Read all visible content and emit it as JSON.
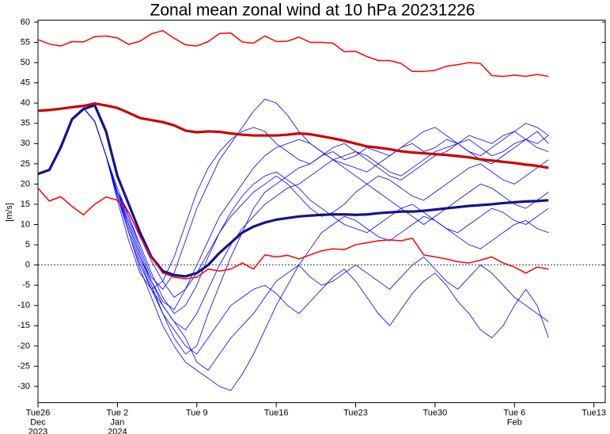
{
  "chart_data": {
    "type": "line",
    "title": "Zonal mean zonal wind at 10 hPa 20231226",
    "y_label": "[m/s]",
    "x": [
      0,
      1,
      2,
      3,
      4,
      5,
      6,
      7,
      8,
      9,
      10,
      11,
      12,
      13,
      14,
      15,
      16,
      17,
      18,
      19,
      20,
      21,
      22,
      23,
      24,
      25,
      26,
      27,
      28,
      29,
      30,
      31,
      32,
      33,
      34,
      35,
      36,
      37,
      38,
      39,
      40,
      41,
      42,
      43,
      44,
      45
    ],
    "xlim": [
      0,
      50
    ],
    "ylim": [
      -34,
      60.5
    ],
    "xticks": [
      {
        "value": 0,
        "label": "Tue26"
      },
      {
        "value": 7,
        "label": "Tue 2"
      },
      {
        "value": 14,
        "label": "Tue 9"
      },
      {
        "value": 21,
        "label": "Tue16"
      },
      {
        "value": 28,
        "label": "Tue23"
      },
      {
        "value": 35,
        "label": "Tue30"
      },
      {
        "value": 42,
        "label": "Tue 6"
      },
      {
        "value": 49,
        "label": "Tue13"
      }
    ],
    "month_labels": [
      {
        "value": 0,
        "label": "Dec"
      },
      {
        "value": 7,
        "label": "Jan"
      },
      {
        "value": 42,
        "label": "Feb"
      }
    ],
    "year_labels": [
      {
        "value": 0,
        "label": "2023"
      },
      {
        "value": 7,
        "label": "2024"
      }
    ],
    "yticks": [
      -30,
      -25,
      -20,
      -15,
      -10,
      -5,
      0,
      5,
      10,
      15,
      20,
      25,
      30,
      35,
      40,
      45,
      50,
      55,
      60
    ],
    "zero_line": true,
    "series": [
      {
        "color": "#0000ff",
        "linewidth": 0.8,
        "values": [
          22.5,
          23.6,
          29.5,
          36.2,
          38.8,
          35.5,
          27.0,
          18,
          10,
          2,
          -5,
          -12,
          -18,
          -22,
          -20,
          -12,
          -5,
          2,
          8,
          14,
          18,
          20,
          22,
          24,
          25,
          27,
          28,
          26,
          27,
          29,
          28,
          27,
          29,
          30,
          28,
          29,
          31,
          30,
          32,
          31,
          30,
          32,
          33,
          31,
          30,
          32
        ]
      },
      {
        "color": "#0000ff",
        "linewidth": 0.8,
        "values": [
          22.5,
          23.6,
          29.5,
          36.2,
          38.8,
          35.5,
          27.0,
          16,
          6,
          -2,
          -6,
          -4,
          2,
          10,
          18,
          24,
          28,
          31,
          33,
          34,
          33,
          30,
          28,
          26,
          25,
          27,
          29,
          30,
          28,
          26,
          24,
          22,
          21,
          23,
          25,
          27,
          28,
          30,
          31,
          29,
          27,
          28,
          30,
          31,
          29,
          28
        ]
      },
      {
        "color": "#0000ff",
        "linewidth": 0.8,
        "values": [
          22.5,
          23.6,
          29.5,
          36.2,
          38.8,
          35.5,
          27.0,
          17,
          8,
          0,
          -6,
          -10,
          -14,
          -18,
          -24,
          -26,
          -22,
          -18,
          -15,
          -12,
          -8,
          -4,
          -2,
          0,
          -3,
          -5,
          -4,
          -2,
          0,
          -2,
          -4,
          -6,
          -3,
          0,
          2,
          -1,
          -4,
          -6,
          -3,
          0,
          -2,
          -5,
          -8,
          -10,
          -12,
          -14
        ]
      },
      {
        "color": "#0000ff",
        "linewidth": 0.8,
        "values": [
          22.5,
          23.6,
          29.5,
          36.2,
          38.8,
          35.5,
          27.0,
          18,
          12,
          5,
          -2,
          -8,
          -12,
          -10,
          -5,
          2,
          8,
          12,
          15,
          18,
          20,
          22,
          20,
          17,
          14,
          12,
          13,
          15,
          18,
          20,
          22,
          21,
          19,
          17,
          16,
          18,
          20,
          22,
          24,
          25,
          23,
          21,
          20,
          22,
          24,
          26
        ]
      },
      {
        "color": "#0000ff",
        "linewidth": 0.8,
        "values": [
          22.5,
          23.6,
          29.5,
          36.2,
          38.8,
          35.5,
          27.0,
          19,
          12,
          4,
          -3,
          -6,
          -2,
          6,
          14,
          20,
          26,
          30,
          34,
          38,
          41,
          40,
          37,
          33,
          30,
          28,
          26,
          24,
          22,
          20,
          18,
          16,
          14,
          12,
          10,
          12,
          14,
          16,
          18,
          20,
          19,
          17,
          15,
          14,
          16,
          18
        ]
      },
      {
        "color": "#0000ff",
        "linewidth": 0.8,
        "values": [
          22.5,
          23.6,
          29.5,
          36.2,
          38.8,
          35.5,
          27.0,
          17,
          9,
          1,
          -6,
          -12,
          -16,
          -20,
          -22,
          -18,
          -14,
          -10,
          -8,
          -6,
          -5,
          -7,
          -10,
          -12,
          -9,
          -6,
          -3,
          -1,
          -4,
          -8,
          -12,
          -15,
          -11,
          -7,
          -4,
          -2,
          -5,
          -9,
          -12,
          -16,
          -18,
          -15,
          -10,
          -6,
          -10,
          -18
        ]
      },
      {
        "color": "#0000ff",
        "linewidth": 0.8,
        "values": [
          22.5,
          23.6,
          29.5,
          36.2,
          38.8,
          35.5,
          27.0,
          18,
          11,
          3,
          -4,
          -9,
          -11,
          -6,
          0,
          6,
          12,
          16,
          20,
          24,
          27,
          29,
          30,
          31,
          30,
          28,
          26,
          25,
          24,
          23,
          25,
          27,
          29,
          31,
          33,
          34,
          32,
          30,
          28,
          27,
          29,
          31,
          33,
          35,
          34,
          32
        ]
      },
      {
        "color": "#0000ff",
        "linewidth": 0.8,
        "values": [
          22.5,
          23.6,
          29.5,
          36.2,
          38.8,
          35.5,
          27.0,
          17,
          8,
          -1,
          -8,
          -15,
          -20,
          -24,
          -26,
          -28,
          -30,
          -31,
          -27,
          -22,
          -16,
          -10,
          -5,
          0,
          4,
          8,
          10,
          12,
          11,
          9,
          7,
          6,
          8,
          10,
          12,
          11,
          9,
          7,
          5,
          4,
          6,
          8,
          10,
          11,
          9,
          8
        ]
      },
      {
        "color": "#0000ff",
        "linewidth": 0.8,
        "values": [
          22.5,
          23.6,
          29.5,
          36.2,
          38.8,
          35.5,
          27.0,
          18,
          13,
          7,
          1,
          -4,
          -8,
          -6,
          -2,
          3,
          8,
          13,
          17,
          20,
          22,
          23,
          21,
          19,
          16,
          14,
          12,
          10,
          9,
          8,
          10,
          12,
          14,
          15,
          13,
          11,
          9,
          8,
          10,
          12,
          14,
          13,
          11,
          10,
          12,
          14
        ]
      },
      {
        "color": "#0000ff",
        "linewidth": 0.8,
        "values": [
          22.5,
          23.6,
          29.5,
          36.2,
          38.8,
          35.5,
          27.0,
          17,
          10,
          2,
          -4,
          -10,
          -14,
          -16,
          -12,
          -6,
          0,
          5,
          9,
          12,
          15,
          17,
          19,
          20,
          22,
          24,
          26,
          27,
          28,
          27,
          25,
          23,
          22,
          24,
          26,
          28,
          29,
          30,
          28,
          26,
          25,
          27,
          29,
          31,
          33,
          30
        ]
      },
      {
        "color": "#14148c",
        "linewidth": 3.2,
        "values": [
          22.5,
          23.5,
          29,
          36,
          38.5,
          39.5,
          33,
          22,
          15,
          8,
          2,
          -1.5,
          -2.5,
          -2.8,
          -2,
          0,
          3,
          5.5,
          8,
          9.5,
          10.5,
          11.2,
          11.6,
          12,
          12.2,
          12.4,
          12.5,
          12.5,
          12.4,
          12.5,
          12.8,
          13,
          13.2,
          13.2,
          13.4,
          13.7,
          14,
          14.3,
          14.6,
          14.8,
          15,
          15.3,
          15.5,
          15.7,
          15.8,
          16.0
        ]
      },
      {
        "color": "#ff0000",
        "linewidth": 1.5,
        "values": [
          55.7,
          54.6,
          54.1,
          55.2,
          55.1,
          56.4,
          56.6,
          56.1,
          54.5,
          55.3,
          57.1,
          57.9,
          56.0,
          54.4,
          54.1,
          55.2,
          57.2,
          57.3,
          55.1,
          54.8,
          56.6,
          55.2,
          55.3,
          56.3,
          55.0,
          55.0,
          54.8,
          52.7,
          52.8,
          51.5,
          50.5,
          50.5,
          49.8,
          47.8,
          47.8,
          48.1,
          49.1,
          49.5,
          50.0,
          49.8,
          46.8,
          46.6,
          46.9,
          46.6,
          47.1,
          46.6
        ]
      },
      {
        "color": "#cc0000",
        "linewidth": 3.2,
        "values": [
          38.1,
          38.3,
          38.6,
          39.0,
          39.3,
          39.9,
          39.4,
          38.8,
          37.6,
          36.3,
          35.8,
          35.3,
          34.5,
          33.2,
          32.8,
          33.0,
          32.9,
          32.5,
          32.2,
          32.0,
          32.0,
          32.0,
          32.2,
          32.5,
          32.3,
          31.8,
          31.3,
          30.7,
          30.0,
          29.3,
          29.0,
          28.6,
          28.1,
          27.8,
          27.6,
          27.4,
          27.2,
          26.9,
          26.6,
          26.1,
          25.8,
          25.5,
          25.2,
          24.8,
          24.5,
          24.0
        ]
      },
      {
        "color": "#ff0000",
        "linewidth": 1.5,
        "values": [
          19,
          15.8,
          16.9,
          14.5,
          12.4,
          15,
          16.8,
          16,
          13,
          7,
          2,
          -2,
          -3,
          -3.4,
          -3,
          -1,
          -1.5,
          -1,
          0.5,
          -1,
          2.5,
          2,
          2.4,
          1.5,
          2.5,
          3.5,
          4,
          3.8,
          5,
          5.5,
          6,
          6.2,
          6,
          6.6,
          2.5,
          2,
          1.5,
          0.8,
          0.5,
          1.2,
          2,
          0.5,
          -0.5,
          -2,
          -0.5,
          -1
        ]
      }
    ]
  }
}
